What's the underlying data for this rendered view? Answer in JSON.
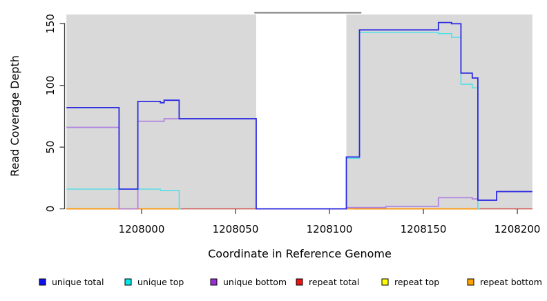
{
  "chart_data": {
    "type": "line",
    "subtype": "step",
    "title": "",
    "xlabel": "Coordinate in Reference Genome",
    "ylabel": "Read Coverage Depth",
    "xlim": [
      1207960,
      1208208
    ],
    "ylim": [
      0,
      157.5
    ],
    "panel_bg": "#d9d9d9",
    "axis_color": "#404040",
    "x_ticks": [
      {
        "value": 1208000,
        "label": "1208000"
      },
      {
        "value": 1208050,
        "label": "1208050"
      },
      {
        "value": 1208100,
        "label": "1208100"
      },
      {
        "value": 1208150,
        "label": "1208150"
      },
      {
        "value": 1208200,
        "label": "1208200"
      }
    ],
    "y_ticks": [
      {
        "value": 0,
        "label": "0"
      },
      {
        "value": 50,
        "label": "50"
      },
      {
        "value": 100,
        "label": "100"
      },
      {
        "value": 150,
        "label": "150"
      }
    ],
    "gap_region": {
      "x_from": 1208061,
      "x_to": 1208109,
      "fill": "#ffffff",
      "top_border": {
        "x_from": 1208060,
        "x_to": 1208117,
        "color": "#7a7a7a"
      }
    },
    "series": [
      {
        "name": "unique total",
        "legend_color": "#1111ee",
        "line_color": "#2b2be2",
        "width": 1.8,
        "z": 7,
        "points": [
          [
            1207960,
            82
          ],
          [
            1207988,
            16
          ],
          [
            1207998,
            87
          ],
          [
            1208010,
            86
          ],
          [
            1208012,
            88
          ],
          [
            1208020,
            73
          ],
          [
            1208061,
            0
          ],
          [
            1208109,
            42
          ],
          [
            1208116,
            145
          ],
          [
            1208158,
            151
          ],
          [
            1208165,
            150
          ],
          [
            1208170,
            110
          ],
          [
            1208176,
            106
          ],
          [
            1208179,
            7
          ],
          [
            1208189,
            14
          ]
        ]
      },
      {
        "name": "unique top",
        "legend_color": "#00e8e8",
        "line_color": "#49dfe8",
        "width": 1.4,
        "z": 6,
        "points": [
          [
            1207960,
            16
          ],
          [
            1208010,
            15
          ],
          [
            1208020,
            0
          ],
          [
            1208021,
            null
          ],
          [
            1208109,
            41
          ],
          [
            1208116,
            143
          ],
          [
            1208158,
            142
          ],
          [
            1208165,
            139
          ],
          [
            1208170,
            101
          ],
          [
            1208176,
            98
          ],
          [
            1208179,
            0
          ],
          [
            1208180,
            null
          ]
        ]
      },
      {
        "name": "unique bottom",
        "legend_color": "#9a2fd6",
        "line_color": "#b184e0",
        "width": 1.8,
        "z": 5,
        "points": [
          [
            1207960,
            66
          ],
          [
            1207988,
            0
          ],
          [
            1207998,
            71
          ],
          [
            1208012,
            73
          ],
          [
            1208061,
            0
          ],
          [
            1208109,
            1
          ],
          [
            1208130,
            2
          ],
          [
            1208158,
            9
          ],
          [
            1208176,
            8
          ],
          [
            1208179,
            7
          ],
          [
            1208189,
            14
          ]
        ]
      },
      {
        "name": "repeat total",
        "legend_color": "#ee1111",
        "line_color": "#d84a69",
        "width": 1.4,
        "z": 3,
        "points": [
          [
            1207960,
            0
          ],
          [
            1208109,
            1
          ],
          [
            1208113,
            0
          ]
        ]
      },
      {
        "name": "repeat top",
        "legend_color": "#ffff00",
        "line_color": "#ffff00",
        "width": 1.4,
        "z": 1,
        "points": [
          [
            1207960,
            0
          ]
        ]
      },
      {
        "name": "repeat bottom",
        "legend_color": "#ffa200",
        "line_color": "#ff9a0d",
        "width": 1.8,
        "z": 4,
        "points": [
          [
            1207960,
            0
          ],
          [
            1208020,
            null
          ],
          [
            1208109,
            0
          ],
          [
            1208179,
            null
          ]
        ]
      }
    ],
    "baseline_overlap_segments": [
      {
        "x_from": 1208020,
        "x_to": 1208061,
        "value": 0,
        "color": "#96d996"
      },
      {
        "x_from": 1208179,
        "x_to": 1208208,
        "value": 0,
        "color": "#96d996"
      }
    ],
    "legend_position": "bottom"
  }
}
